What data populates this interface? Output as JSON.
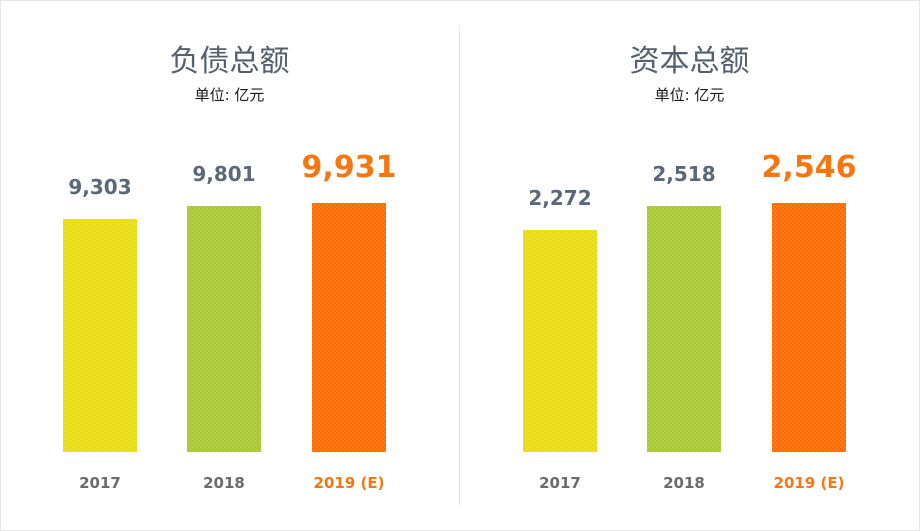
{
  "chart_data": [
    {
      "type": "bar",
      "title": "负债总额",
      "subtitle": "单位: 亿元",
      "categories": [
        "2017",
        "2018",
        "2019 (E)"
      ],
      "values": [
        9303,
        9801,
        9931
      ],
      "value_labels": [
        "9,303",
        "9,801",
        "9,931"
      ],
      "bar_colors": [
        "#e8dc10",
        "#a8c832",
        "#ff6a00"
      ],
      "label_colors": [
        "#5a6878",
        "#5a6878",
        "#f7760f"
      ],
      "highlight_index": 2
    },
    {
      "type": "bar",
      "title": "资本总额",
      "subtitle": "单位: 亿元",
      "categories": [
        "2017",
        "2018",
        "2019 (E)"
      ],
      "values": [
        2272,
        2518,
        2546
      ],
      "value_labels": [
        "2,272",
        "2,518",
        "2,546"
      ],
      "bar_colors": [
        "#e8dc10",
        "#a8c832",
        "#ff6a00"
      ],
      "label_colors": [
        "#5a6878",
        "#5a6878",
        "#f7760f"
      ],
      "highlight_index": 2
    }
  ]
}
